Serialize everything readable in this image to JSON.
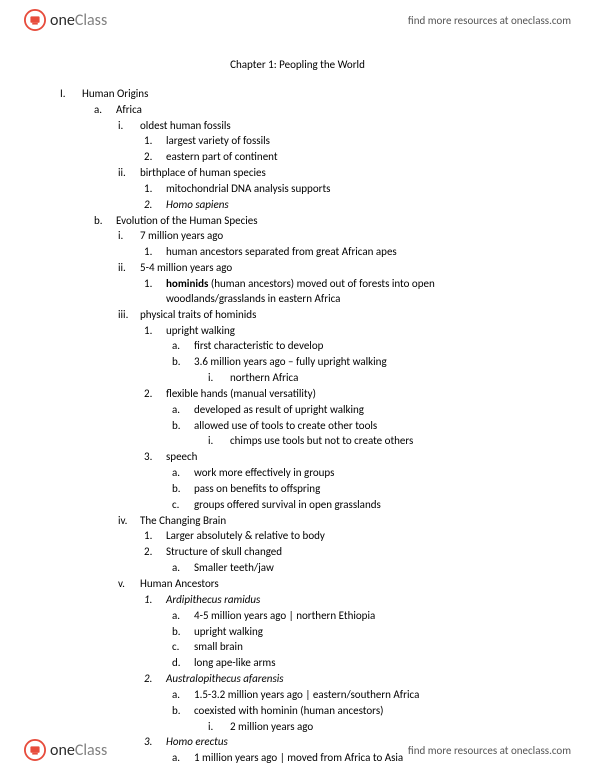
{
  "brand": {
    "name_part1": "one",
    "name_part2": "Class"
  },
  "find_more": "find more resources at oneclass.com",
  "chapter_title": "Chapter 1: Peopling the World",
  "outline": [
    {
      "lvl": 0,
      "marker": "I.",
      "text": "Human Origins"
    },
    {
      "lvl": 1,
      "marker": "a.",
      "text": "Africa"
    },
    {
      "lvl": 2,
      "marker": "i.",
      "text": "oldest human fossils"
    },
    {
      "lvl": 3,
      "marker": "1.",
      "text": "largest variety of fossils"
    },
    {
      "lvl": 3,
      "marker": "2.",
      "text": "eastern part of continent"
    },
    {
      "lvl": 2,
      "marker": "ii.",
      "text": "birthplace of human species"
    },
    {
      "lvl": 3,
      "marker": "1.",
      "text": "mitochondrial DNA analysis supports"
    },
    {
      "lvl": 3,
      "marker": "2.",
      "text": "Homo sapiens",
      "italic": true
    },
    {
      "lvl": 1,
      "marker": "b.",
      "text": "Evolution of the Human Species"
    },
    {
      "lvl": 2,
      "marker": "i.",
      "text": "7 million years ago"
    },
    {
      "lvl": 3,
      "marker": "1.",
      "text": "human ancestors separated from great African apes"
    },
    {
      "lvl": 2,
      "marker": "ii.",
      "text": "5-4 million years ago"
    },
    {
      "lvl": 3,
      "marker": "1.",
      "text_html": "<span class=\"bold\">hominids</span> (human ancestors) moved out of forests into open woodlands/grasslands in eastern Africa"
    },
    {
      "lvl": 2,
      "marker": "iii.",
      "text": "physical traits of hominids"
    },
    {
      "lvl": 3,
      "marker": "1.",
      "text": "upright walking"
    },
    {
      "lvl": 4,
      "marker": "a.",
      "text": "first characteristic to develop"
    },
    {
      "lvl": 4,
      "marker": "b.",
      "text": "3.6 million years ago – fully upright walking"
    },
    {
      "lvl": 5,
      "marker": "i.",
      "text": "northern Africa"
    },
    {
      "lvl": 3,
      "marker": "2.",
      "text": "flexible hands (manual versatility)"
    },
    {
      "lvl": 4,
      "marker": "a.",
      "text": "developed as result of upright walking"
    },
    {
      "lvl": 4,
      "marker": "b.",
      "text": "allowed use of tools to create other tools"
    },
    {
      "lvl": 5,
      "marker": "i.",
      "text": "chimps use tools but not to create others"
    },
    {
      "lvl": 3,
      "marker": "3.",
      "text": "speech"
    },
    {
      "lvl": 4,
      "marker": "a.",
      "text": "work more effectively in groups"
    },
    {
      "lvl": 4,
      "marker": "b.",
      "text": "pass on benefits to offspring"
    },
    {
      "lvl": 4,
      "marker": "c.",
      "text": "groups offered survival in open grasslands"
    },
    {
      "lvl": 2,
      "marker": "iv.",
      "text": "The Changing Brain"
    },
    {
      "lvl": 3,
      "marker": "1.",
      "text": "Larger absolutely & relative to body"
    },
    {
      "lvl": 3,
      "marker": "2.",
      "text": "Structure of skull changed"
    },
    {
      "lvl": 4,
      "marker": "a.",
      "text": "Smaller teeth/jaw"
    },
    {
      "lvl": 2,
      "marker": "v.",
      "text": "Human Ancestors"
    },
    {
      "lvl": 3,
      "marker": "1.",
      "text": "Ardipithecus ramidus",
      "italic": true
    },
    {
      "lvl": 4,
      "marker": "a.",
      "text": "4-5 million years ago | northern Ethiopia"
    },
    {
      "lvl": 4,
      "marker": "b.",
      "text": "upright walking"
    },
    {
      "lvl": 4,
      "marker": "c.",
      "text": "small brain"
    },
    {
      "lvl": 4,
      "marker": "d.",
      "text": "long ape-like arms"
    },
    {
      "lvl": 3,
      "marker": "2.",
      "text": "Australopithecus afarensis",
      "italic": true
    },
    {
      "lvl": 4,
      "marker": "a.",
      "text": "1.5-3.2 million years ago | eastern/southern Africa"
    },
    {
      "lvl": 4,
      "marker": "b.",
      "text": "coexisted with hominin (human ancestors)"
    },
    {
      "lvl": 5,
      "marker": "i.",
      "text": "2 million years ago"
    },
    {
      "lvl": 3,
      "marker": "3.",
      "text": "Homo erectus",
      "italic": true
    },
    {
      "lvl": 4,
      "marker": "a.",
      "text": "1 million years ago | moved from Africa to Asia"
    }
  ]
}
